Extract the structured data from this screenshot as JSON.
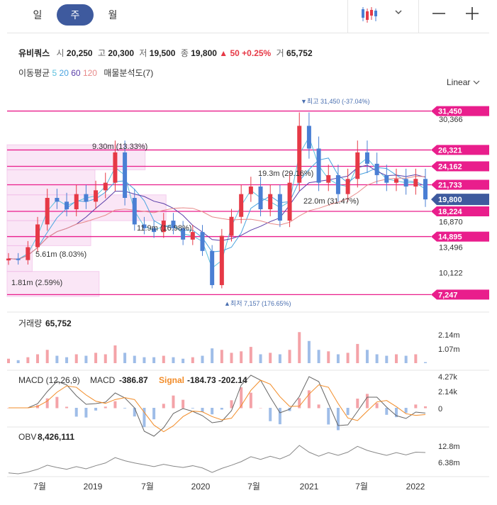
{
  "tabs": [
    {
      "label": "일",
      "active": false
    },
    {
      "label": "주",
      "active": true
    },
    {
      "label": "월",
      "active": false
    }
  ],
  "toolbar": {
    "chart_type_icon": "candlestick-icon",
    "dropdown_icon": "chevron-down-icon",
    "minus_icon": "minus-icon",
    "plus_icon": "plus-icon"
  },
  "quote": {
    "name": "유비쿼스",
    "open_label": "시",
    "open": "20,250",
    "high_label": "고",
    "high": "20,300",
    "low_label": "저",
    "low": "19,500",
    "close_label": "종",
    "close": "19,800",
    "change": "▲ 50",
    "change_pct": "+0.25%",
    "volume_label": "거",
    "volume": "65,752"
  },
  "indicators": {
    "ma_label": "이동평균",
    "ma5": "5",
    "ma20": "20",
    "ma60": "60",
    "ma120": "120",
    "volume_profile_label": "매물분석도(7)"
  },
  "scale_label": "Linear",
  "colors": {
    "up": "#e63946",
    "down": "#4a7fd4",
    "accent": "#3e5a9e",
    "tag": "#e91e8c",
    "current": "#3e5a9e",
    "ma5": "#5bc0de",
    "ma20": "#4aa3df",
    "ma60": "#5a3ea8",
    "ma120": "#e88a8a",
    "signal": "#f28c28",
    "obv": "#888888"
  },
  "main_chart": {
    "y_ticks": [
      "30,366",
      "16,870",
      "13,496",
      "10,122"
    ],
    "price_tags": [
      "31,450",
      "26,321",
      "24,162",
      "21,733",
      "18,224",
      "14,895",
      "7,247"
    ],
    "current_price_tag": "19,800",
    "high_marker": "▼최고  31,450 (-37.04%)",
    "low_marker": "▲최저  7,157 (176.65%)",
    "profile_labels": [
      "9.30m (13.33%)",
      "19.3m (29.16%)",
      "11.9m (16.98%)",
      "22.0m (31.47%)",
      "5.61m (8.03%)",
      "1.81m (2.59%)"
    ]
  },
  "volume_panel": {
    "label": "거래량",
    "value": "65,752",
    "ticks": [
      "2.14m",
      "1.07m"
    ]
  },
  "macd_panel": {
    "label": "MACD (12,26,9)",
    "macd_label": "MACD",
    "macd_value": "-386.87",
    "signal_label": "Signal",
    "signal_value": "-184.73",
    "hist_value": "-202.14",
    "ticks": [
      "4.27k",
      "2.14k",
      "0"
    ]
  },
  "obv_panel": {
    "label": "OBV",
    "value": "8,426,111",
    "ticks": [
      "12.8m",
      "6.38m"
    ]
  },
  "x_ticks": [
    "7월",
    "2019",
    "7월",
    "2020",
    "7월",
    "2021",
    "7월",
    "2022"
  ],
  "chart_data": {
    "type": "candlestick",
    "x": [
      "2018-06",
      "2018-07",
      "2018-08",
      "2018-09",
      "2018-10",
      "2018-11",
      "2018-12",
      "2019-01",
      "2019-02",
      "2019-03",
      "2019-04",
      "2019-05",
      "2019-06",
      "2019-07",
      "2019-08",
      "2019-09",
      "2019-10",
      "2019-11",
      "2019-12",
      "2020-01",
      "2020-02",
      "2020-03",
      "2020-04",
      "2020-05",
      "2020-06",
      "2020-07",
      "2020-08",
      "2020-09",
      "2020-10",
      "2020-11",
      "2020-12",
      "2021-01",
      "2021-02",
      "2021-03",
      "2021-04",
      "2021-05",
      "2021-06",
      "2021-07",
      "2021-08",
      "2021-09",
      "2021-10",
      "2021-11",
      "2021-12",
      "2022-01"
    ],
    "close": [
      12000,
      11800,
      13500,
      16500,
      20000,
      19500,
      18500,
      20500,
      19500,
      21000,
      22000,
      26000,
      20000,
      16500,
      16000,
      15500,
      17000,
      16000,
      14500,
      15500,
      13000,
      8500,
      15000,
      17500,
      20500,
      21500,
      18500,
      20500,
      17000,
      22000,
      29500,
      26500,
      22000,
      23000,
      20500,
      22500,
      26000,
      24500,
      23000,
      22000,
      22500,
      21500,
      22500,
      19800
    ],
    "volume": [
      0.3,
      0.2,
      0.4,
      0.6,
      0.9,
      0.5,
      0.4,
      0.6,
      0.5,
      0.7,
      0.6,
      1.2,
      0.7,
      0.5,
      0.4,
      0.4,
      0.5,
      0.4,
      0.3,
      0.4,
      0.5,
      1.0,
      0.9,
      0.7,
      0.8,
      1.1,
      0.6,
      0.7,
      0.6,
      0.9,
      2.1,
      1.5,
      0.9,
      0.8,
      0.6,
      0.7,
      1.3,
      0.9,
      0.6,
      0.5,
      0.6,
      0.5,
      0.6,
      0.07
    ],
    "ylim": [
      7000,
      33000
    ],
    "x_tick_labels": [
      "7월",
      "2019",
      "7월",
      "2020",
      "7월",
      "2021",
      "7월",
      "2022"
    ]
  }
}
